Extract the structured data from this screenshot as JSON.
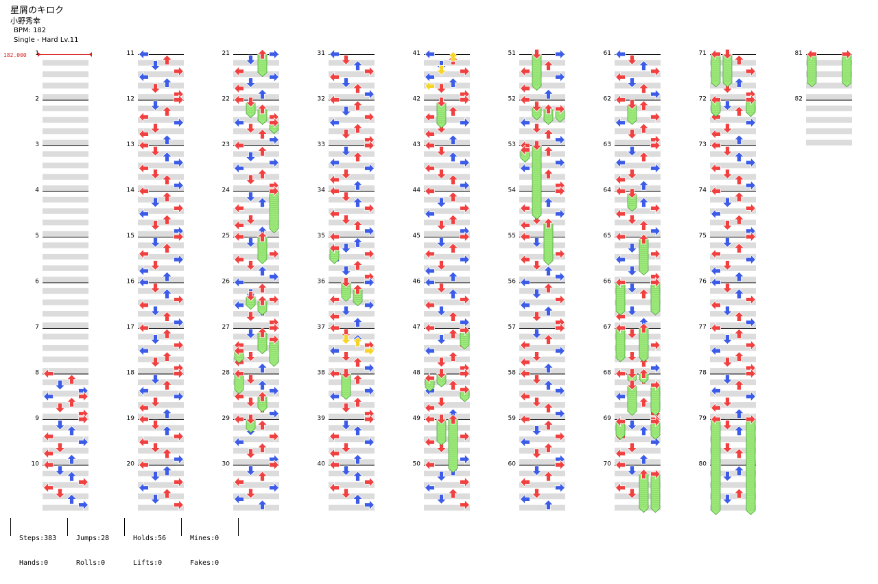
{
  "song": {
    "title": "星屑のキロク",
    "artist": "小野秀幸",
    "bpm_label": "BPM: 182",
    "difficulty_label": "Single - Hard  Lv.11"
  },
  "bpm_marker": {
    "label": "182.000",
    "color": "#d62020"
  },
  "colors": {
    "red_arrow": "#f04040",
    "blue_arrow": "#3c5ce8",
    "yellow_arrow": "#f7d428",
    "hold_fill": "#9cea7a",
    "hold_stroke": "#4a9e3a",
    "band": "#dcdcdc"
  },
  "measure_numbers": [
    "1",
    "2",
    "3",
    "4",
    "5",
    "6",
    "7",
    "8",
    "9",
    "10",
    "11",
    "12",
    "13",
    "14",
    "15",
    "16",
    "17",
    "18",
    "19",
    "20",
    "21",
    "22",
    "23",
    "24",
    "25",
    "26",
    "27",
    "28",
    "29",
    "30",
    "31",
    "32",
    "33",
    "34",
    "35",
    "36",
    "37",
    "38",
    "39",
    "40",
    "41",
    "42",
    "43",
    "44",
    "45",
    "46",
    "47",
    "48",
    "49",
    "50",
    "51",
    "52",
    "53",
    "54",
    "55",
    "56",
    "57",
    "58",
    "59",
    "60",
    "61",
    "62",
    "63",
    "64",
    "65",
    "66",
    "67",
    "68",
    "69",
    "70",
    "71",
    "72",
    "73",
    "74",
    "75",
    "76",
    "77",
    "78",
    "79",
    "80",
    "81",
    "82"
  ],
  "stats": {
    "steps": "Steps:383",
    "hands": "Hands:0",
    "jumps": "Jumps:28",
    "rolls": "Rolls:0",
    "holds": "Holds:56",
    "lifts": "Lifts:0",
    "mines": "Mines:0",
    "fakes": "Fakes:0"
  }
}
